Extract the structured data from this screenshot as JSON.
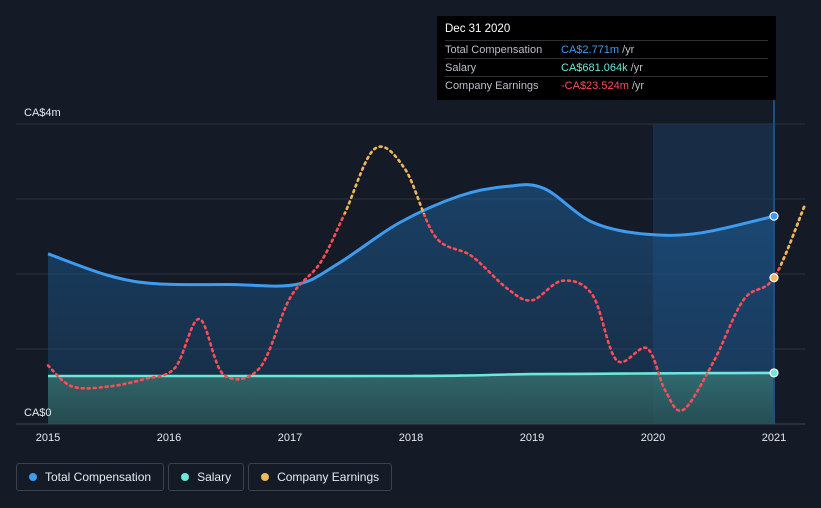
{
  "chart_data": {
    "type": "line",
    "title": "",
    "xlabel": "",
    "ylabel": "",
    "ylim": [
      0,
      4.0
    ],
    "y_unit_label_top": "CA$4m",
    "y_unit_label_bottom": "CA$0",
    "xlim": [
      2015,
      2021.25
    ],
    "x_ticks": [
      {
        "value": 2015,
        "label": "2015"
      },
      {
        "value": 2016,
        "label": "2016"
      },
      {
        "value": 2017,
        "label": "2017"
      },
      {
        "value": 2018,
        "label": "2018"
      },
      {
        "value": 2019,
        "label": "2019"
      },
      {
        "value": 2020,
        "label": "2020"
      },
      {
        "value": 2021,
        "label": "2021"
      }
    ],
    "highlight_range": [
      2020,
      2021
    ],
    "series": [
      {
        "name": "Total Compensation",
        "color": "#3e9cf0",
        "style": "solid",
        "area": true,
        "x": [
          2015,
          2015.5,
          2015.9,
          2016.5,
          2017.05,
          2017.4,
          2017.9,
          2018.4,
          2018.8,
          2019.1,
          2019.5,
          2019.95,
          2020.4,
          2021
        ],
        "values": [
          2.27,
          1.98,
          1.87,
          1.86,
          1.86,
          2.14,
          2.68,
          3.04,
          3.17,
          3.14,
          2.69,
          2.53,
          2.55,
          2.771
        ]
      },
      {
        "name": "Salary",
        "color": "#6ee6d9",
        "style": "solid",
        "area": true,
        "x": [
          2015,
          2016,
          2017,
          2018,
          2018.4,
          2018.8,
          2019,
          2019.5,
          2020,
          2020.5,
          2021
        ],
        "values": [
          0.64,
          0.64,
          0.64,
          0.64,
          0.645,
          0.66,
          0.665,
          0.67,
          0.675,
          0.678,
          0.681
        ]
      },
      {
        "name": "Company Earnings",
        "color": "#ff4d55",
        "alt_color": "#f0b85a",
        "style": "dotted",
        "x": [
          2015,
          2015.2,
          2015.5,
          2015.8,
          2016.05,
          2016.25,
          2016.45,
          2016.75,
          2017.0,
          2017.25,
          2017.45,
          2017.7,
          2017.95,
          2018.2,
          2018.5,
          2018.8,
          2019.0,
          2019.25,
          2019.5,
          2019.7,
          2019.95,
          2020.1,
          2020.25,
          2020.5,
          2020.75,
          2021,
          2021.25
        ],
        "values": [
          0.78,
          0.5,
          0.5,
          0.6,
          0.75,
          1.4,
          0.66,
          0.75,
          1.68,
          2.15,
          2.8,
          3.67,
          3.4,
          2.5,
          2.24,
          1.8,
          1.65,
          1.91,
          1.72,
          0.85,
          1.01,
          0.45,
          0.19,
          0.83,
          1.66,
          1.95,
          2.9
        ]
      }
    ],
    "tooltip": {
      "date": "Dec 31 2020",
      "rows": [
        {
          "label": "Total Compensation",
          "value": "CA$2.771m",
          "unit": "/yr",
          "color": "#3e9cf0"
        },
        {
          "label": "Salary",
          "value": "CA$681.064k",
          "unit": "/yr",
          "color": "#6ee6d9"
        },
        {
          "label": "Company Earnings",
          "value": "-CA$23.524m",
          "unit": "/yr",
          "color": "#ff4d55"
        }
      ]
    },
    "legend": [
      {
        "label": "Total Compensation",
        "color": "#3e9cf0"
      },
      {
        "label": "Salary",
        "color": "#6ee6d9"
      },
      {
        "label": "Company Earnings",
        "color": "#f0b85a"
      }
    ]
  }
}
